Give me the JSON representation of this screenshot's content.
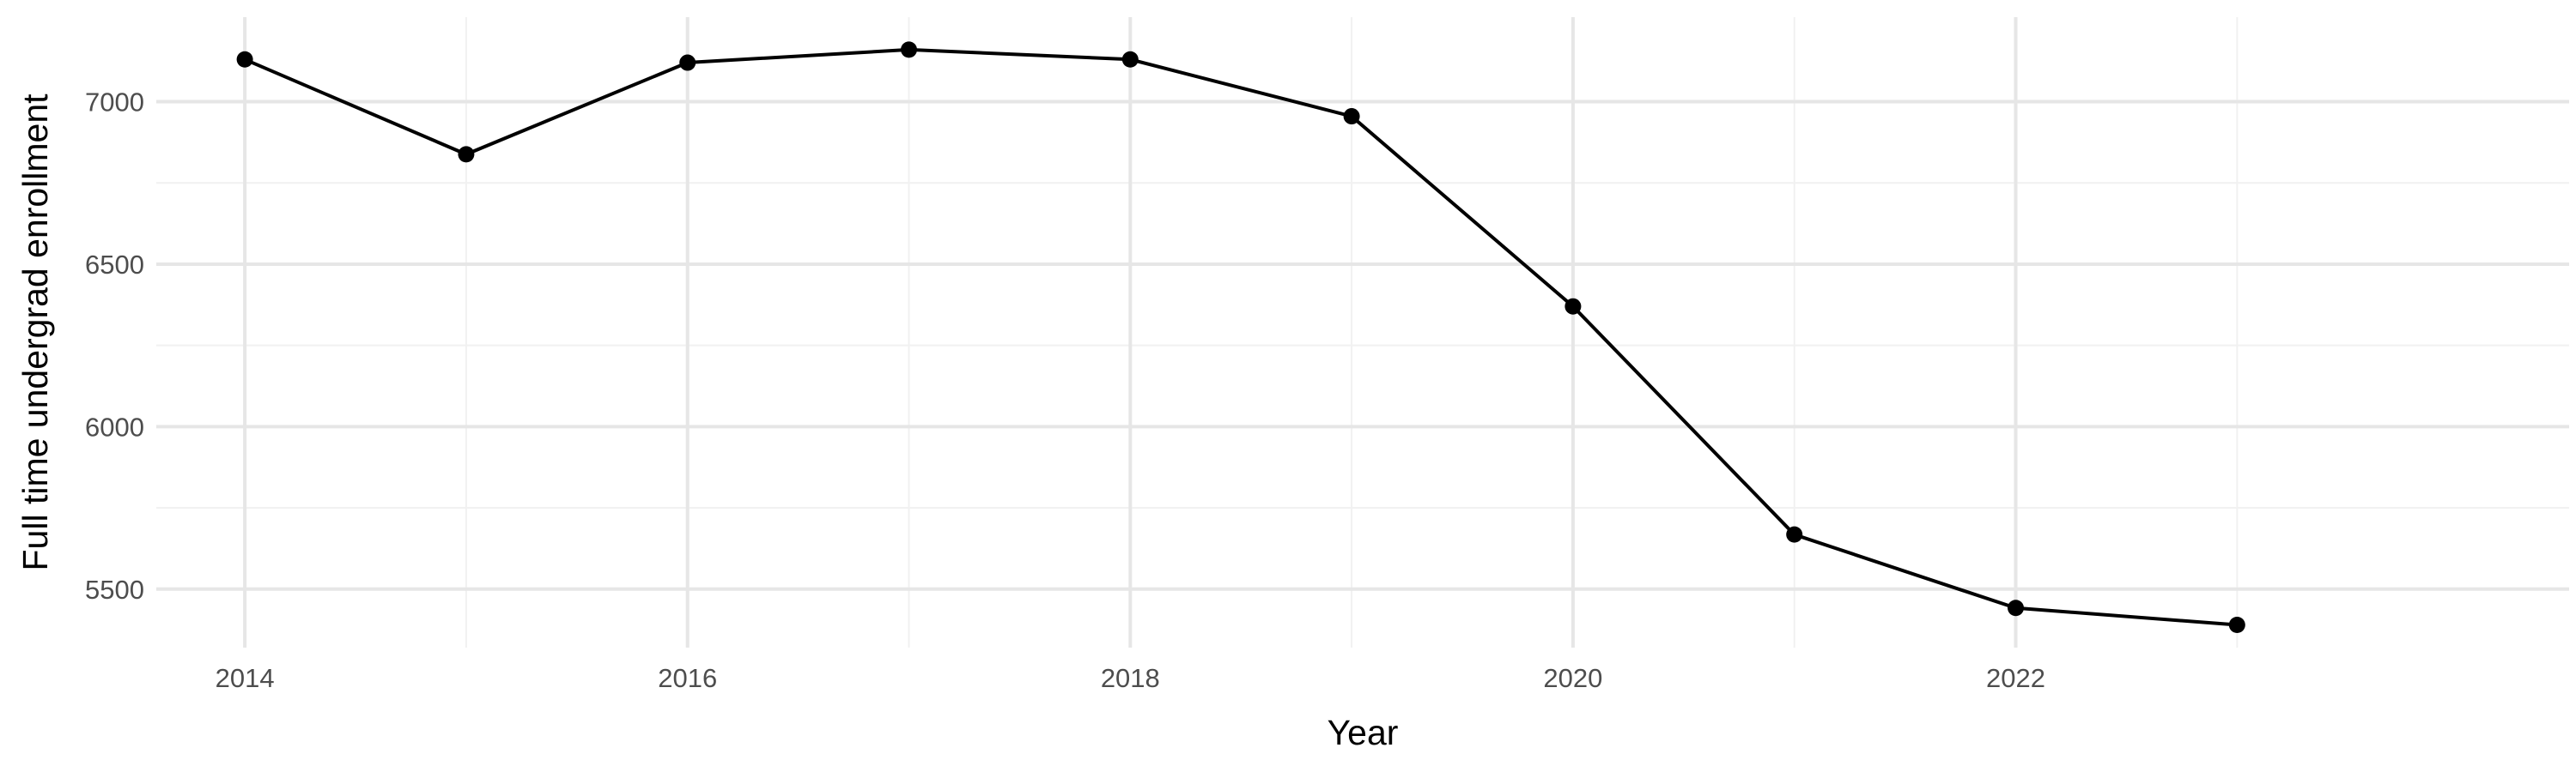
{
  "chart_data": {
    "type": "line",
    "title": "",
    "xlabel": "Year",
    "ylabel": "Full time undergrad enrollment",
    "x": [
      2014,
      2015,
      2016,
      2017,
      2018,
      2019,
      2020,
      2021,
      2022,
      2023
    ],
    "series": [
      {
        "values": [
          7130,
          6838,
          7120,
          7160,
          7130,
          6955,
          6370,
          5668,
          5442,
          5390
        ]
      }
    ],
    "xlim": [
      2013.6,
      2024.5
    ],
    "ylim": [
      5320,
      7260
    ],
    "x_ticks": [
      2014,
      2016,
      2018,
      2020,
      2022
    ],
    "x_tick_labels": [
      "2014",
      "2016",
      "2018",
      "2020",
      "2022"
    ],
    "x_minor_ticks": [
      2015,
      2017,
      2019,
      2021,
      2023
    ],
    "y_ticks": [
      5500,
      6000,
      6500,
      7000
    ],
    "y_tick_labels": [
      "5500",
      "6000",
      "6500",
      "7000"
    ],
    "y_minor_ticks": [
      5750,
      6250,
      6750
    ],
    "grid": true,
    "legend": "none",
    "colors": {
      "line": "#000000",
      "point": "#000000",
      "grid_major": "#e6e6e6",
      "grid_minor": "#f1f1f1",
      "tick_label": "#4d4d4d",
      "axis_title": "#000000",
      "background": "#ffffff"
    }
  }
}
